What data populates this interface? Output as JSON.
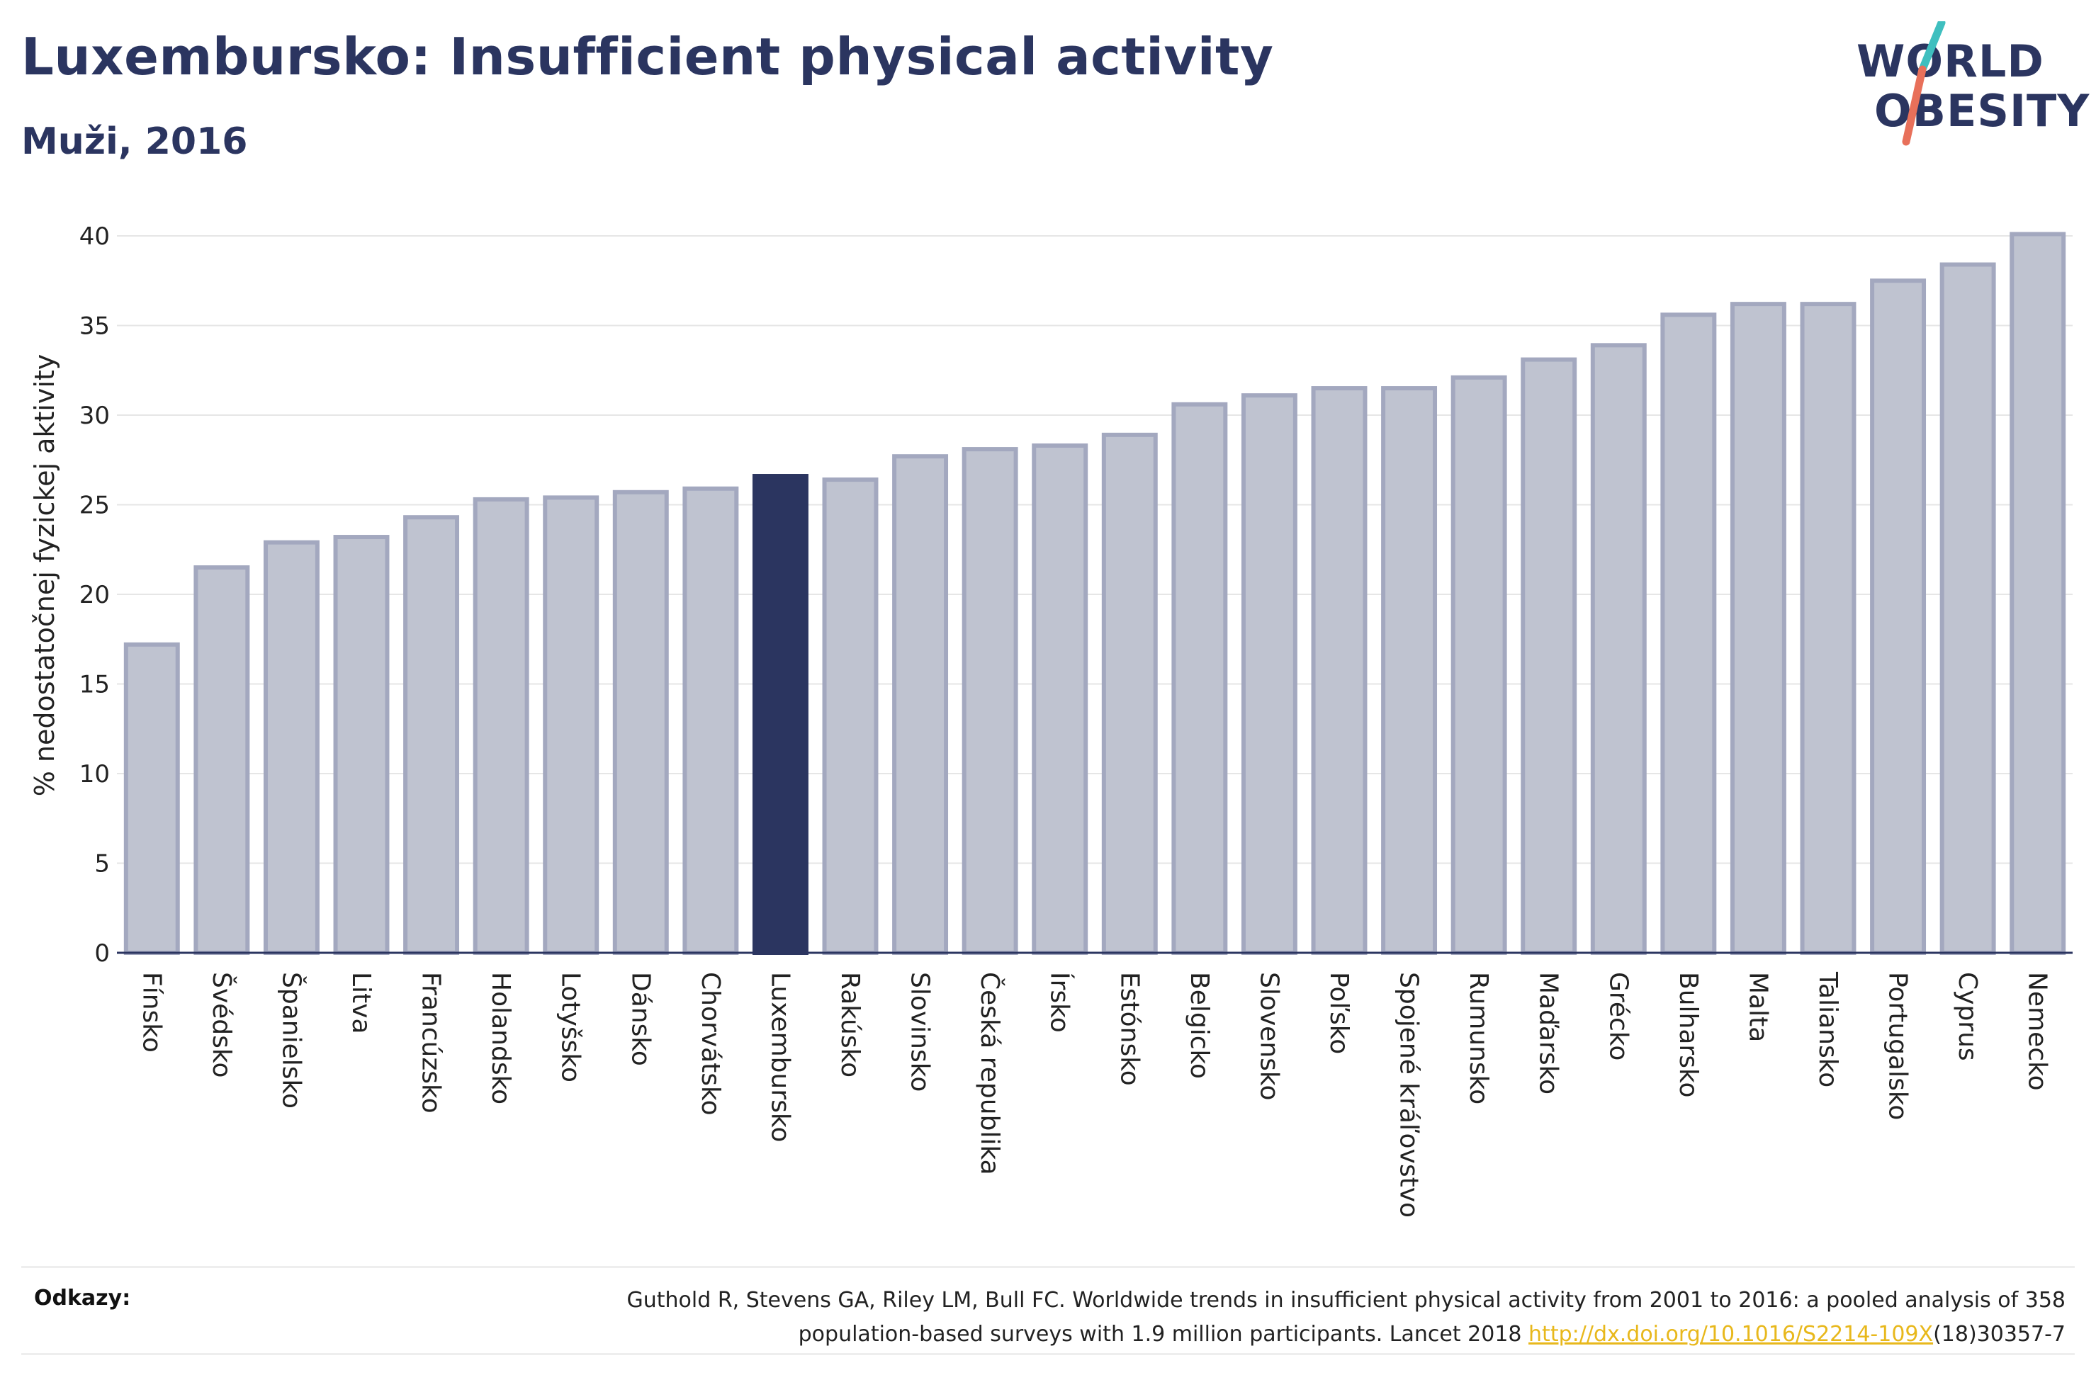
{
  "header": {
    "title": "Luxembursko: Insufficient physical activity",
    "subtitle": "Muži, 2016"
  },
  "logo": {
    "line1": "WORLD",
    "line2": "OBESITY"
  },
  "colors": {
    "bar": "#bfc3d0",
    "bar_stroke": "#a3a8bf",
    "highlight": "#2b3560",
    "accent_teal": "#3fbfbf",
    "accent_coral": "#e8705a",
    "link": "#e8b81c"
  },
  "chart_data": {
    "type": "bar",
    "title": "Luxembursko: Insufficient physical activity",
    "subtitle": "Muži, 2016",
    "xlabel": "",
    "ylabel": "% nedostatočnej fyzickej aktivity",
    "ylim": [
      0,
      40
    ],
    "yticks": [
      0,
      5,
      10,
      15,
      20,
      25,
      30,
      35,
      40
    ],
    "grid": true,
    "highlight": "Luxembursko",
    "categories": [
      "Fínsko",
      "Švédsko",
      "Španielsko",
      "Litva",
      "Francúzsko",
      "Holandsko",
      "Lotyšsko",
      "Dánsko",
      "Chorvátsko",
      "Luxembursko",
      "Rakúsko",
      "Slovinsko",
      "Česká republika",
      "Írsko",
      "Estónsko",
      "Belgicko",
      "Slovensko",
      "Poľsko",
      "Spojené kráľovstvo",
      "Rumunsko",
      "Maďarsko",
      "Grécko",
      "Bulharsko",
      "Malta",
      "Taliansko",
      "Portugalsko",
      "Cyprus",
      "Nemecko"
    ],
    "values": [
      17.2,
      21.5,
      22.9,
      23.2,
      24.3,
      25.3,
      25.4,
      25.7,
      25.9,
      26.6,
      26.4,
      27.7,
      28.1,
      28.3,
      28.9,
      30.6,
      31.1,
      31.5,
      31.5,
      32.1,
      33.1,
      33.9,
      35.6,
      36.2,
      36.2,
      37.5,
      38.4,
      40.1
    ]
  },
  "references": {
    "label": "Odkazy:",
    "text_line1": "Guthold R, Stevens GA, Riley LM, Bull FC. Worldwide trends in insufficient physical activity from 2001 to 2016: a pooled analysis of 358",
    "text_line2_pre": "population-based surveys with 1.9 million participants. Lancet 2018 ",
    "link": "http://dx.doi.org/10.1016/S2214-109X",
    "text_line2_post": "(18)30357-7"
  }
}
